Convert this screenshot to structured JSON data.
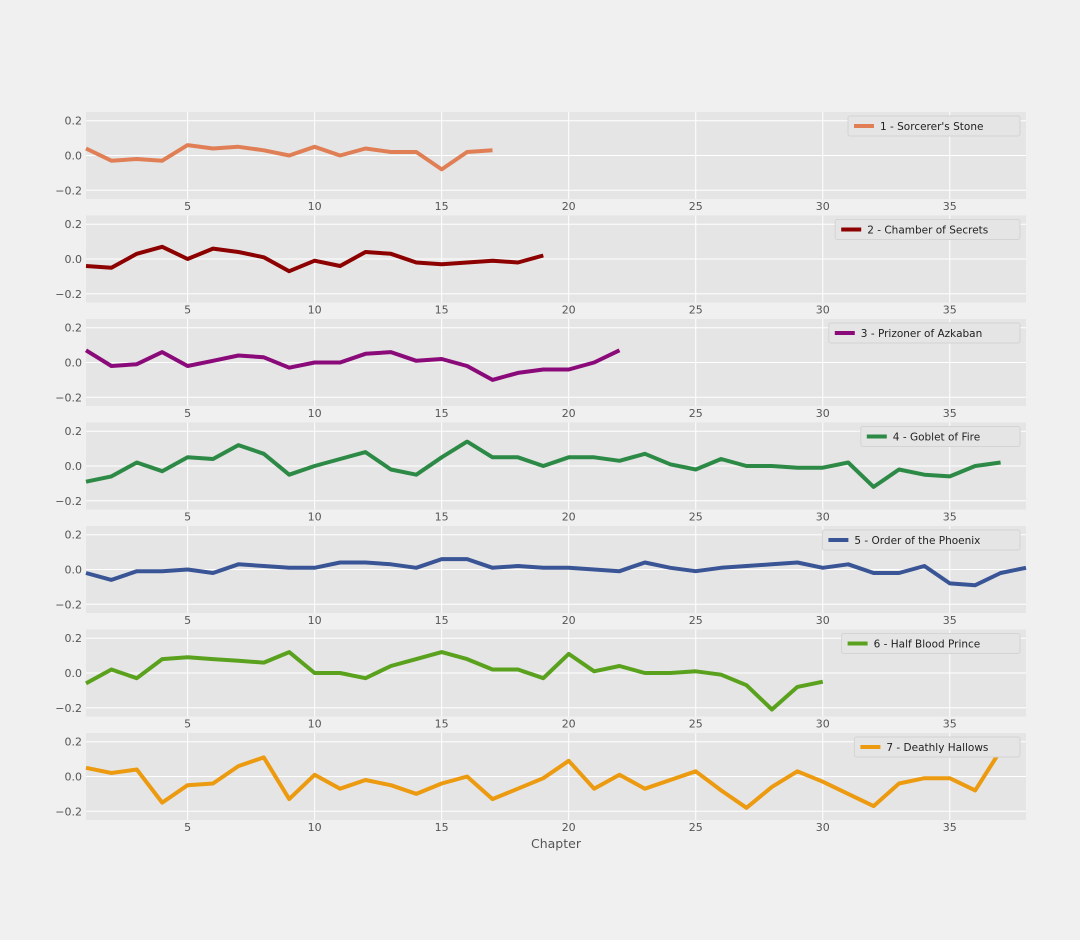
{
  "chart_data": {
    "type": "line",
    "xlabel": "Chapter",
    "xlim": [
      1,
      38
    ],
    "ylim": [
      -0.25,
      0.25
    ],
    "x_ticks": [
      5,
      10,
      15,
      20,
      25,
      30,
      35
    ],
    "y_ticks": [
      0.2,
      0.0,
      -0.2
    ],
    "y_tick_labels": [
      "0.2",
      "0.0",
      "−0.2"
    ],
    "grid": true,
    "legend_position": "top-right",
    "series": [
      {
        "name": "1 - Sorcerer's Stone",
        "color": "#e07f55",
        "values": [
          0.04,
          -0.03,
          -0.02,
          -0.03,
          0.06,
          0.04,
          0.05,
          0.03,
          0.0,
          0.05,
          0.0,
          0.04,
          0.02,
          0.02,
          -0.08,
          0.02,
          0.03
        ]
      },
      {
        "name": "2 - Chamber of Secrets",
        "color": "#8c0000",
        "values": [
          -0.04,
          -0.05,
          0.03,
          0.07,
          0.0,
          0.06,
          0.04,
          0.01,
          -0.07,
          -0.01,
          -0.04,
          0.04,
          0.03,
          -0.02,
          -0.03,
          -0.02,
          -0.01,
          -0.02,
          0.02
        ]
      },
      {
        "name": "3 - Prizoner of Azkaban",
        "color": "#8b0a7a",
        "values": [
          0.07,
          -0.02,
          -0.01,
          0.06,
          -0.02,
          0.01,
          0.04,
          0.03,
          -0.03,
          0.0,
          0.0,
          0.05,
          0.06,
          0.01,
          0.02,
          -0.02,
          -0.1,
          -0.06,
          -0.04,
          -0.04,
          0.0,
          0.07
        ]
      },
      {
        "name": "4 - Goblet of Fire",
        "color": "#2d8a46",
        "values": [
          -0.09,
          -0.06,
          0.02,
          -0.03,
          0.05,
          0.04,
          0.12,
          0.07,
          -0.05,
          0.0,
          0.04,
          0.08,
          -0.02,
          -0.05,
          0.05,
          0.14,
          0.05,
          0.05,
          0.0,
          0.05,
          0.05,
          0.03,
          0.07,
          0.01,
          -0.02,
          0.04,
          0.0,
          0.0,
          -0.01,
          -0.01,
          0.02,
          -0.12,
          -0.02,
          -0.05,
          -0.06,
          0.0,
          0.02
        ]
      },
      {
        "name": "5 - Order of the Phoenix",
        "color": "#3a5596",
        "values": [
          -0.02,
          -0.06,
          -0.01,
          -0.01,
          0.0,
          -0.02,
          0.03,
          0.02,
          0.01,
          0.01,
          0.04,
          0.04,
          0.03,
          0.01,
          0.06,
          0.06,
          0.01,
          0.02,
          0.01,
          0.01,
          0.0,
          -0.01,
          0.04,
          0.01,
          -0.01,
          0.01,
          0.02,
          0.03,
          0.04,
          0.01,
          0.03,
          -0.02,
          -0.02,
          0.02,
          -0.08,
          -0.09,
          -0.02,
          0.01
        ]
      },
      {
        "name": "6 - Half Blood Prince",
        "color": "#5aa21e",
        "values": [
          -0.06,
          0.02,
          -0.03,
          0.08,
          0.09,
          0.08,
          0.07,
          0.06,
          0.12,
          0.0,
          0.0,
          -0.03,
          0.04,
          0.08,
          0.12,
          0.08,
          0.02,
          0.02,
          -0.03,
          0.11,
          0.01,
          0.04,
          0.0,
          0.0,
          0.01,
          -0.01,
          -0.07,
          -0.21,
          -0.08,
          -0.05
        ]
      },
      {
        "name": "7 - Deathly Hallows",
        "color": "#ec9a10",
        "values": [
          0.05,
          0.02,
          0.04,
          -0.15,
          -0.05,
          -0.04,
          0.06,
          0.11,
          -0.13,
          0.01,
          -0.07,
          -0.02,
          -0.05,
          -0.1,
          -0.04,
          0.0,
          -0.13,
          -0.07,
          -0.01,
          0.09,
          -0.07,
          0.01,
          -0.07,
          -0.02,
          0.03,
          -0.08,
          -0.18,
          -0.06,
          0.03,
          -0.03,
          -0.1,
          -0.17,
          -0.04,
          -0.01,
          -0.01,
          -0.08,
          0.15
        ]
      }
    ]
  }
}
